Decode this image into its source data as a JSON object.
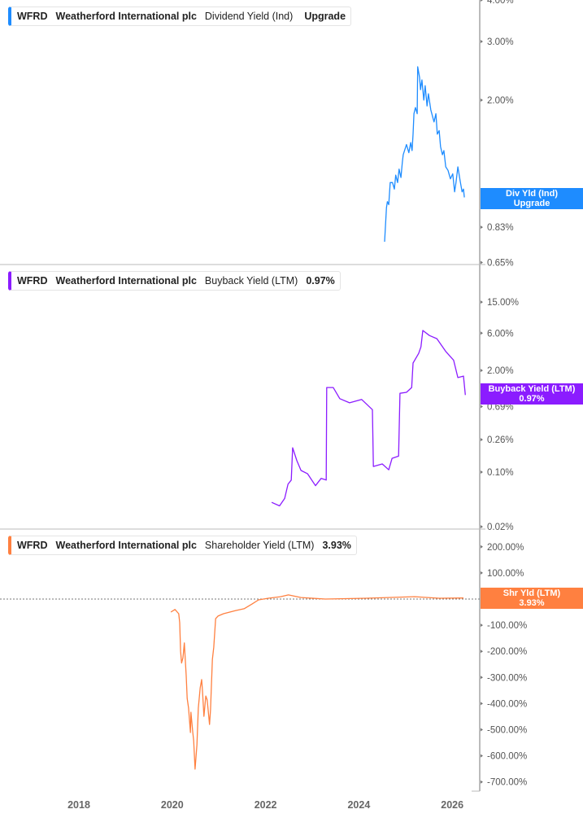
{
  "chart_data": [
    {
      "type": "line",
      "ticker": "WFRD",
      "company": "Weatherford International plc",
      "metric": "Dividend Yield (Ind)",
      "legend_value": "Upgrade",
      "badge": {
        "line1": "Div Yld (Ind)",
        "line2": "Upgrade"
      },
      "color": "#1e8cff",
      "yscale": "log",
      "ylim": [
        0.64,
        4.0
      ],
      "yticks": [
        4.0,
        3.0,
        2.0,
        1.0,
        0.83,
        0.65
      ],
      "ytick_labels": [
        "4.00%",
        "3.00%",
        "2.00%",
        "1.00%",
        "0.83%",
        "0.65%"
      ],
      "points": [
        [
          2024.55,
          0.75
        ],
        [
          2024.57,
          0.84
        ],
        [
          2024.59,
          0.95
        ],
        [
          2024.61,
          0.99
        ],
        [
          2024.64,
          0.97
        ],
        [
          2024.67,
          1.13
        ],
        [
          2024.72,
          1.13
        ],
        [
          2024.76,
          1.08
        ],
        [
          2024.79,
          1.19
        ],
        [
          2024.83,
          1.13
        ],
        [
          2024.86,
          1.24
        ],
        [
          2024.9,
          1.17
        ],
        [
          2024.93,
          1.3
        ],
        [
          2024.95,
          1.37
        ],
        [
          2025.02,
          1.47
        ],
        [
          2025.07,
          1.39
        ],
        [
          2025.11,
          1.49
        ],
        [
          2025.14,
          1.41
        ],
        [
          2025.16,
          1.58
        ],
        [
          2025.18,
          1.82
        ],
        [
          2025.21,
          1.9
        ],
        [
          2025.25,
          1.82
        ],
        [
          2025.26,
          2.52
        ],
        [
          2025.3,
          2.34
        ],
        [
          2025.32,
          2.15
        ],
        [
          2025.35,
          2.3
        ],
        [
          2025.39,
          2.0
        ],
        [
          2025.42,
          2.21
        ],
        [
          2025.46,
          1.92
        ],
        [
          2025.49,
          2.09
        ],
        [
          2025.54,
          1.87
        ],
        [
          2025.6,
          1.74
        ],
        [
          2025.61,
          1.72
        ],
        [
          2025.65,
          1.82
        ],
        [
          2025.68,
          1.58
        ],
        [
          2025.72,
          1.62
        ],
        [
          2025.75,
          1.45
        ],
        [
          2025.79,
          1.37
        ],
        [
          2025.82,
          1.41
        ],
        [
          2025.86,
          1.26
        ],
        [
          2025.91,
          1.23
        ],
        [
          2025.96,
          1.16
        ],
        [
          2026.01,
          1.2
        ],
        [
          2026.05,
          1.06
        ],
        [
          2026.08,
          1.13
        ],
        [
          2026.12,
          1.26
        ],
        [
          2026.17,
          1.14
        ],
        [
          2026.21,
          1.06
        ],
        [
          2026.24,
          1.08
        ],
        [
          2026.26,
          1.02
        ]
      ]
    },
    {
      "type": "line",
      "ticker": "WFRD",
      "company": "Weatherford International plc",
      "metric": "Buyback Yield (LTM)",
      "legend_value": "0.97%",
      "badge": {
        "line1": "Buyback Yield (LTM)",
        "line2": "0.97%"
      },
      "color": "#8b1cff",
      "yscale": "log",
      "ylim": [
        0.02,
        30
      ],
      "yticks": [
        15,
        6,
        2,
        0.69,
        0.26,
        0.1,
        0.02
      ],
      "ytick_labels": [
        "15.00%",
        "6.00%",
        "2.00%",
        "0.69%",
        "0.26%",
        "0.10%",
        "0.02%"
      ],
      "points": [
        [
          2022.13,
          0.041
        ],
        [
          2022.3,
          0.037
        ],
        [
          2022.41,
          0.046
        ],
        [
          2022.48,
          0.07
        ],
        [
          2022.55,
          0.079
        ],
        [
          2022.58,
          0.205
        ],
        [
          2022.67,
          0.14
        ],
        [
          2022.76,
          0.105
        ],
        [
          2022.9,
          0.095
        ],
        [
          2023.07,
          0.067
        ],
        [
          2023.19,
          0.083
        ],
        [
          2023.3,
          0.079
        ],
        [
          2023.31,
          1.21
        ],
        [
          2023.45,
          1.21
        ],
        [
          2023.59,
          0.87
        ],
        [
          2023.8,
          0.77
        ],
        [
          2024.06,
          0.85
        ],
        [
          2024.29,
          0.63
        ],
        [
          2024.31,
          0.118
        ],
        [
          2024.5,
          0.127
        ],
        [
          2024.64,
          0.107
        ],
        [
          2024.71,
          0.15
        ],
        [
          2024.85,
          0.16
        ],
        [
          2024.88,
          1.02
        ],
        [
          2025.02,
          1.05
        ],
        [
          2025.13,
          1.21
        ],
        [
          2025.16,
          2.49
        ],
        [
          2025.28,
          3.3
        ],
        [
          2025.33,
          4.0
        ],
        [
          2025.37,
          6.5
        ],
        [
          2025.51,
          5.6
        ],
        [
          2025.67,
          5.1
        ],
        [
          2025.86,
          3.5
        ],
        [
          2026.03,
          2.7
        ],
        [
          2026.12,
          1.62
        ],
        [
          2026.24,
          1.69
        ],
        [
          2026.28,
          0.97
        ]
      ]
    },
    {
      "type": "line",
      "ticker": "WFRD",
      "company": "Weatherford International plc",
      "metric": "Shareholder Yield (LTM)",
      "legend_value": "3.93%",
      "badge": {
        "line1": "Shr Yld (LTM)",
        "line2": "3.93%"
      },
      "color": "#ff8040",
      "yscale": "linear",
      "ylim": [
        -730,
        270
      ],
      "reference_line": 0,
      "yticks": [
        200,
        100,
        0,
        -100,
        -200,
        -300,
        -400,
        -500,
        -600,
        -700
      ],
      "ytick_labels": [
        "200.00%",
        "100.00%",
        "0.00%",
        "-100.00%",
        "-200.00%",
        "-300.00%",
        "-400.00%",
        "-500.00%",
        "-600.00%",
        "-700.00%"
      ],
      "points": [
        [
          2019.97,
          -50
        ],
        [
          2020.06,
          -40
        ],
        [
          2020.14,
          -56
        ],
        [
          2020.16,
          -90
        ],
        [
          2020.18,
          -200
        ],
        [
          2020.2,
          -245
        ],
        [
          2020.23,
          -225
        ],
        [
          2020.26,
          -168
        ],
        [
          2020.3,
          -293
        ],
        [
          2020.32,
          -380
        ],
        [
          2020.35,
          -417
        ],
        [
          2020.39,
          -511
        ],
        [
          2020.4,
          -433
        ],
        [
          2020.44,
          -511
        ],
        [
          2020.46,
          -542
        ],
        [
          2020.49,
          -651
        ],
        [
          2020.53,
          -558
        ],
        [
          2020.56,
          -417
        ],
        [
          2020.6,
          -340
        ],
        [
          2020.63,
          -308
        ],
        [
          2020.65,
          -355
        ],
        [
          2020.68,
          -449
        ],
        [
          2020.72,
          -371
        ],
        [
          2020.75,
          -386
        ],
        [
          2020.8,
          -480
        ],
        [
          2020.82,
          -424
        ],
        [
          2020.86,
          -231
        ],
        [
          2020.89,
          -184
        ],
        [
          2020.93,
          -75
        ],
        [
          2020.98,
          -65
        ],
        [
          2021.1,
          -56
        ],
        [
          2021.36,
          -44
        ],
        [
          2021.54,
          -37
        ],
        [
          2021.71,
          -19
        ],
        [
          2021.85,
          -3
        ],
        [
          2022.06,
          3
        ],
        [
          2022.32,
          9
        ],
        [
          2022.49,
          16
        ],
        [
          2022.76,
          6
        ],
        [
          2023.28,
          0
        ],
        [
          2024.15,
          3
        ],
        [
          2025.2,
          9
        ],
        [
          2025.72,
          3
        ],
        [
          2026.24,
          3.93
        ]
      ]
    }
  ],
  "x_axis": {
    "ticks": [
      2018,
      2020,
      2022,
      2024,
      2026
    ],
    "tick_labels": [
      "2018",
      "2020",
      "2022",
      "2024",
      "2026"
    ],
    "range": [
      2016.3,
      2026.6
    ]
  }
}
